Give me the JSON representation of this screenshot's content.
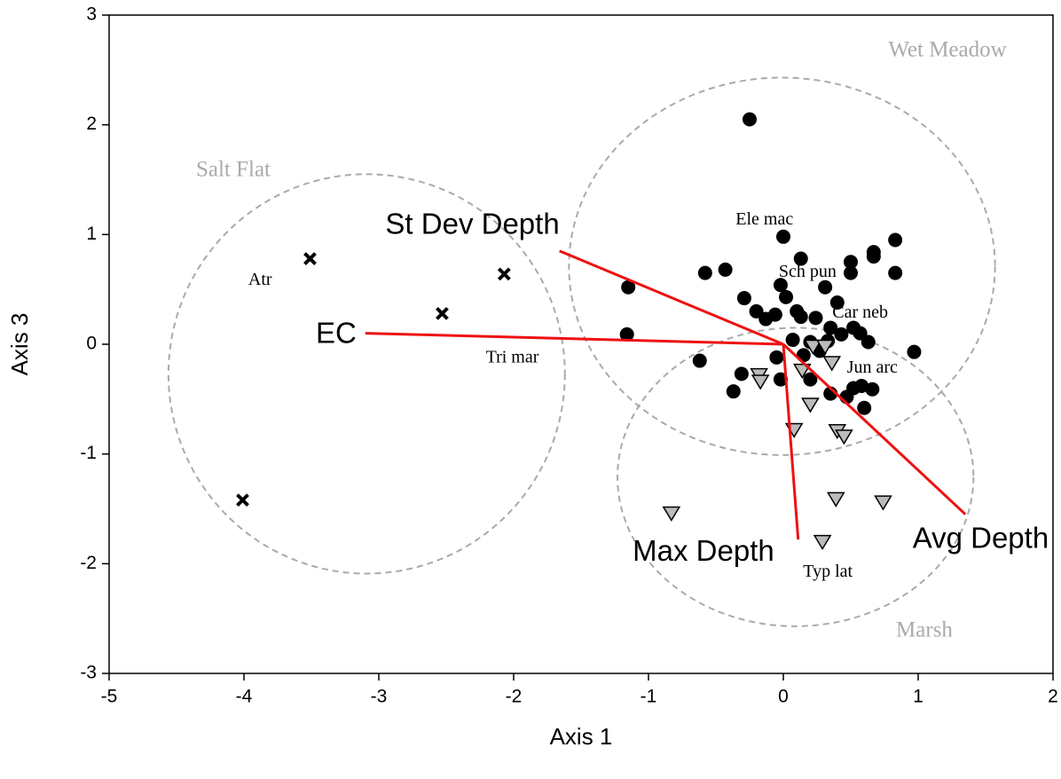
{
  "chart_data": {
    "type": "scatter",
    "x_label": "Axis 1",
    "y_label": "Axis 3",
    "xlim": [
      -5,
      2
    ],
    "xticks": [
      -5,
      -4,
      -3,
      -2,
      -1,
      0,
      1,
      2
    ],
    "ylim": [
      -3,
      3
    ],
    "yticks": [
      -3,
      -2,
      -1,
      0,
      1,
      2,
      3
    ],
    "grid": false,
    "series": [
      {
        "name": "Wet Meadow",
        "marker": "circle",
        "color": "#000000",
        "label_color": "#aaaaaa",
        "ellipse": {
          "cx": -0.01,
          "cy": 0.71,
          "rx": 1.58,
          "ry": 1.72
        },
        "x": [
          -0.25,
          0,
          0.83,
          0.67,
          0.67,
          0.5,
          0.5,
          0.83,
          0.13,
          -0.43,
          -0.58,
          -1.15,
          -1.16,
          -0.29,
          -0.2,
          -0.02,
          0.02,
          0.31,
          0.1,
          0.13,
          -0.13,
          -0.06,
          0.24,
          0.4,
          0.35,
          0.52,
          0.57,
          0.43,
          0.63,
          0.07,
          0.2,
          0.33,
          0.15,
          0.97,
          -0.62,
          -0.31,
          -0.37,
          -0.02,
          -0.05,
          0.2,
          0.35,
          0.47,
          0.52,
          0.58,
          0.66,
          0.6,
          0.27
        ],
        "y": [
          2.05,
          0.98,
          0.95,
          0.84,
          0.8,
          0.75,
          0.65,
          0.65,
          0.78,
          0.68,
          0.65,
          0.52,
          0.09,
          0.42,
          0.3,
          0.54,
          0.43,
          0.52,
          0.3,
          0.25,
          0.23,
          0.27,
          0.24,
          0.38,
          0.15,
          0.15,
          0.1,
          0.09,
          0.02,
          0.04,
          0.02,
          0.03,
          -0.1,
          -0.07,
          -0.15,
          -0.27,
          -0.43,
          -0.32,
          -0.12,
          -0.32,
          -0.45,
          -0.48,
          -0.4,
          -0.38,
          -0.41,
          -0.58,
          -0.06
        ]
      },
      {
        "name": "Marsh",
        "marker": "triangle",
        "color": "#bbbbbb",
        "label_color": "#aaaaaa",
        "ellipse": {
          "cx": 0.09,
          "cy": -1.21,
          "rx": 1.32,
          "ry": 1.36
        },
        "x": [
          -0.18,
          -0.17,
          0.22,
          0.31,
          0.36,
          0.14,
          0.2,
          0.08,
          0.4,
          0.45,
          -0.83,
          0.39,
          0.74,
          0.29
        ],
        "y": [
          -0.28,
          -0.34,
          -0.02,
          -0.02,
          -0.17,
          -0.24,
          -0.55,
          -0.78,
          -0.79,
          -0.84,
          -1.54,
          -1.41,
          -1.44,
          -1.8
        ]
      },
      {
        "name": "Salt Flat",
        "marker": "cross",
        "color": "#000000",
        "label_color": "#aaaaaa",
        "ellipse": {
          "cx": -3.09,
          "cy": -0.27,
          "rx": 1.47,
          "ry": 1.82
        },
        "x": [
          -3.51,
          -2.53,
          -2.07,
          -4.01
        ],
        "y": [
          0.78,
          0.28,
          0.64,
          -1.42
        ]
      }
    ],
    "vectors": {
      "color": "#ee1111",
      "items": [
        {
          "label": "St Dev Depth",
          "x": -1.66,
          "y": 0.85
        },
        {
          "label": "EC",
          "x": -3.1,
          "y": 0.1
        },
        {
          "label": "Max Depth",
          "x": 0.11,
          "y": -1.78
        },
        {
          "label": "Avg Depth",
          "x": 1.35,
          "y": -1.55
        }
      ]
    },
    "species": [
      {
        "label": "Ele mac",
        "x": -0.14,
        "y": 1.13
      },
      {
        "label": "Sch pun",
        "x": 0.18,
        "y": 0.65
      },
      {
        "label": "Car neb",
        "x": 0.57,
        "y": 0.28
      },
      {
        "label": "Jun arc",
        "x": 0.66,
        "y": -0.22
      },
      {
        "label": "Tri mar",
        "x": -2.01,
        "y": -0.13
      },
      {
        "label": "Atr",
        "x": -3.88,
        "y": 0.58
      },
      {
        "label": "Typ lat",
        "x": 0.33,
        "y": -2.08
      }
    ]
  }
}
